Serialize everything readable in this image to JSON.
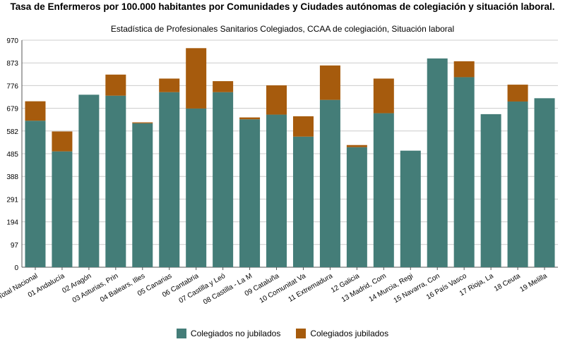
{
  "colors": {
    "no_jubilados": "#447d78",
    "jubilados": "#a65b0d",
    "grid": "#cccccc",
    "axis": "#555555"
  },
  "chart_data": {
    "type": "bar",
    "stacked": true,
    "title": "Tasa de Enfermeros por 100.000 habitantes por Comunidades y Ciudades autónomas de colegiación y situación laboral.",
    "subtitle": "Estadística de Profesionales Sanitarios Colegiados, CCAA de colegiación, Situación laboral",
    "categories": [
      "Total Nacional",
      "01 Andalucía",
      "02 Aragón",
      "03 Asturias, Prin",
      "04 Balears, Illes",
      "05 Canarias",
      "06 Cantabria",
      "07 Castilla y Leó",
      "08 Castilla - La M",
      "09 Cataluña",
      "10 Comunitat Va",
      "11 Extremadura",
      "12 Galicia",
      "13 Madrid, Com",
      "14 Murcia, Regi",
      "15 Navarra, Con",
      "16 País Vasco",
      "17 Rioja, La",
      "18 Ceuta",
      "19 Melilla"
    ],
    "series": [
      {
        "name": "Colegiados no jubilados",
        "values": [
          626,
          495,
          737,
          733,
          615,
          748,
          678,
          748,
          632,
          652,
          558,
          715,
          513,
          658,
          498,
          892,
          812,
          654,
          708,
          722
        ]
      },
      {
        "name": "Colegiados jubilados",
        "values": [
          83,
          85,
          0,
          90,
          4,
          58,
          258,
          47,
          8,
          125,
          87,
          147,
          9,
          148,
          0,
          0,
          68,
          0,
          72,
          0
        ]
      }
    ],
    "ylim": [
      0,
      970
    ],
    "yticks": [
      "0",
      "97",
      "194",
      "291",
      "388",
      "485",
      "582",
      "679",
      "776",
      "873",
      "970"
    ],
    "grid": true,
    "legend_position": "bottom"
  }
}
